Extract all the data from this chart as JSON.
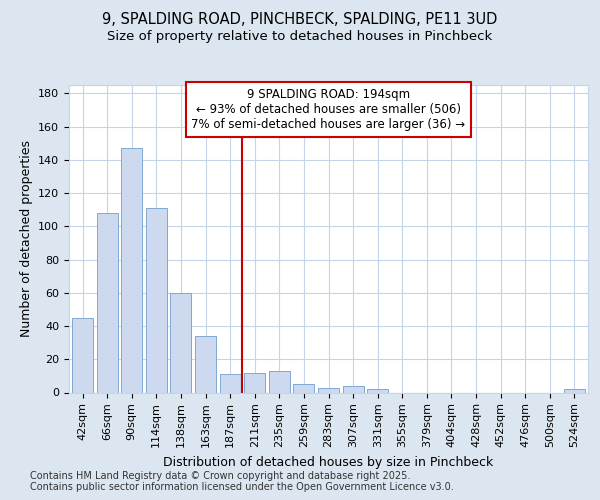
{
  "title_line1": "9, SPALDING ROAD, PINCHBECK, SPALDING, PE11 3UD",
  "title_line2": "Size of property relative to detached houses in Pinchbeck",
  "xlabel": "Distribution of detached houses by size in Pinchbeck",
  "ylabel": "Number of detached properties",
  "categories": [
    "42sqm",
    "66sqm",
    "90sqm",
    "114sqm",
    "138sqm",
    "163sqm",
    "187sqm",
    "211sqm",
    "235sqm",
    "259sqm",
    "283sqm",
    "307sqm",
    "331sqm",
    "355sqm",
    "379sqm",
    "404sqm",
    "428sqm",
    "452sqm",
    "476sqm",
    "500sqm",
    "524sqm"
  ],
  "values": [
    45,
    108,
    147,
    111,
    60,
    34,
    11,
    12,
    13,
    5,
    3,
    4,
    2,
    0,
    0,
    0,
    0,
    0,
    0,
    0,
    2
  ],
  "bar_color": "#ccd9ee",
  "bar_edge_color": "#7fa8d1",
  "background_color": "#dce6f1",
  "plot_bg_color": "#ffffff",
  "grid_color": "#c5d4e8",
  "vline_x": 6.5,
  "vline_color": "#cc0000",
  "annotation_text": "9 SPALDING ROAD: 194sqm\n← 93% of detached houses are smaller (506)\n7% of semi-detached houses are larger (36) →",
  "annotation_box_color": "#ffffff",
  "annotation_box_edge": "#cc0000",
  "ylim": [
    0,
    185
  ],
  "yticks": [
    0,
    20,
    40,
    60,
    80,
    100,
    120,
    140,
    160,
    180
  ],
  "footer_text": "Contains HM Land Registry data © Crown copyright and database right 2025.\nContains public sector information licensed under the Open Government Licence v3.0.",
  "title_fontsize": 10.5,
  "subtitle_fontsize": 9.5,
  "axis_label_fontsize": 9,
  "tick_fontsize": 8,
  "annotation_fontsize": 8.5,
  "footer_fontsize": 7
}
